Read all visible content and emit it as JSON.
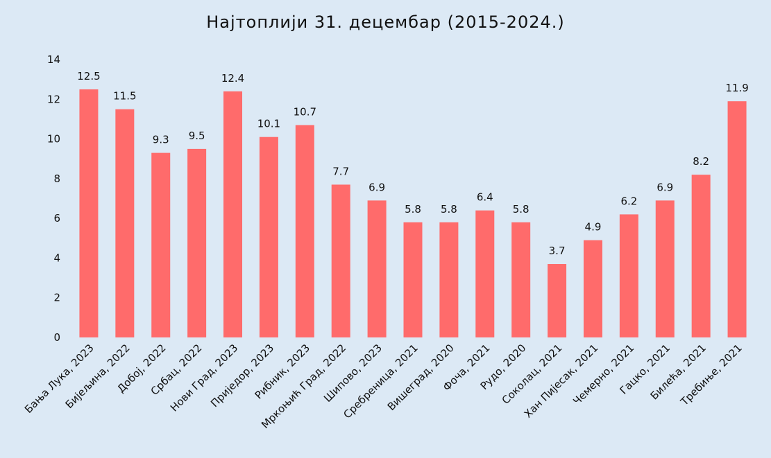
{
  "chart_data": {
    "type": "bar",
    "title": "Најтоплији 31. децембар (2015-2024.)",
    "categories": [
      "Бања Лука, 2023",
      "Бијељина, 2022",
      "Добој, 2022",
      "Србац, 2022",
      "Нови Град, 2023",
      "Приједор, 2023",
      "Рибник, 2023",
      "Мркоњић Град, 2022",
      "Шипово, 2023",
      "Сребреница, 2021",
      "Вишеград, 2020",
      "Фоча, 2021",
      "Рудо, 2020",
      "Соколац, 2021",
      "Хан Пијесак, 2021",
      "Чемерно, 2021",
      "Гацко, 2021",
      "Билећа, 2021",
      "Требиње, 2021"
    ],
    "values": [
      12.5,
      11.5,
      9.3,
      9.5,
      12.4,
      10.1,
      10.7,
      7.7,
      6.9,
      5.8,
      5.8,
      6.4,
      5.8,
      3.7,
      4.9,
      6.2,
      6.9,
      8.2,
      11.9
    ],
    "value_labels": [
      "12.5",
      "11.5",
      "9.3",
      "9.5",
      "12.4",
      "10.1",
      "10.7",
      "7.7",
      "6.9",
      "5.8",
      "5.8",
      "6.4",
      "5.8",
      "3.7",
      "4.9",
      "6.2",
      "6.9",
      "8.2",
      "11.9"
    ],
    "yticks": [
      "0",
      "2",
      "4",
      "6",
      "8",
      "10",
      "12",
      "14"
    ],
    "ylim": [
      0,
      14
    ],
    "xlabel": "",
    "ylabel": "",
    "grid": false,
    "bar_color": "#ff6b6b",
    "background": "#dce9f5"
  }
}
